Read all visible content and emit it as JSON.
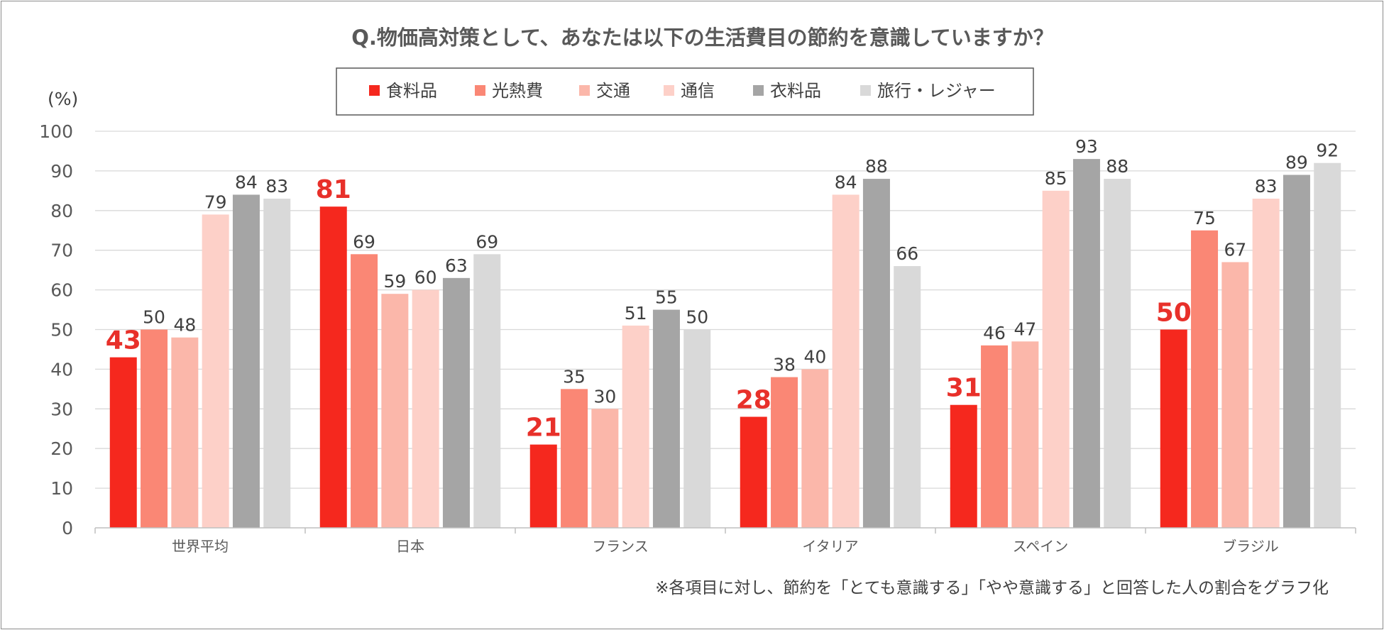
{
  "chart_data": {
    "type": "bar",
    "title": "Q.物価高対策として、あなたは以下の生活費目の節約を意識していますか？",
    "ylabel": "(%)",
    "xlabel": "",
    "ylim": [
      0,
      100
    ],
    "yticks": [
      0,
      10,
      20,
      30,
      40,
      50,
      60,
      70,
      80,
      90,
      100
    ],
    "grid": true,
    "legend_position": "top-center",
    "categories": [
      "世界平均",
      "日本",
      "フランス",
      "イタリア",
      "スペイン",
      "ブラジル"
    ],
    "series": [
      {
        "name": "食料品",
        "color": "#f5281e",
        "values": [
          43,
          81,
          21,
          28,
          31,
          50
        ],
        "highlight": true
      },
      {
        "name": "光熱費",
        "color": "#fa8775",
        "values": [
          50,
          69,
          35,
          38,
          46,
          75
        ]
      },
      {
        "name": "交通",
        "color": "#fbb7aa",
        "values": [
          48,
          59,
          30,
          40,
          47,
          67
        ]
      },
      {
        "name": "通信",
        "color": "#fdd0c8",
        "values": [
          79,
          60,
          51,
          84,
          85,
          83
        ]
      },
      {
        "name": "衣料品",
        "color": "#a5a5a5",
        "values": [
          84,
          63,
          55,
          88,
          93,
          89
        ]
      },
      {
        "name": "旅行・レジャー",
        "color": "#d9d9d9",
        "values": [
          83,
          69,
          50,
          66,
          88,
          92
        ]
      }
    ],
    "note": "※各項目に対し、節約を「とても意識する」「やや意識する」と回答した人の割合をグラフ化"
  }
}
